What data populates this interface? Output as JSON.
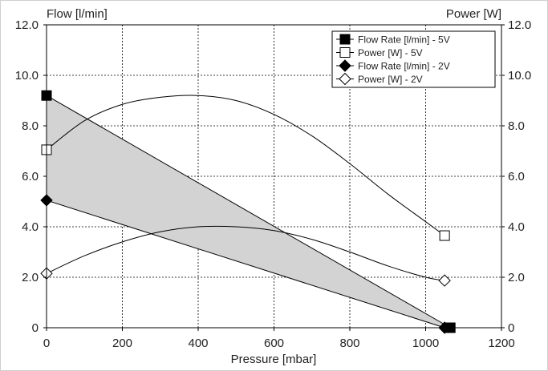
{
  "chart_data": {
    "type": "line",
    "y_axis_left_title": "Flow [l/min]",
    "y_axis_right_title": "Power [W]",
    "xlabel": "Pressure [mbar]",
    "xlim": [
      0,
      1200
    ],
    "ylim": [
      0,
      12
    ],
    "x_ticks": [
      0,
      200,
      400,
      600,
      800,
      1000,
      1200
    ],
    "x_tick_labels": [
      "0",
      "200",
      "400",
      "600",
      "800",
      "1000",
      "1200"
    ],
    "y_ticks": [
      0,
      2,
      4,
      6,
      8,
      10,
      12
    ],
    "y_tick_labels_left": [
      "0",
      "2.0",
      "4.0",
      "6.0",
      "8.0",
      "10.0",
      "12.0"
    ],
    "y_tick_labels_right": [
      "0",
      "2.0",
      "4.0",
      "6.0",
      "8.0",
      "10.0",
      "12.0"
    ],
    "grid": true,
    "legend_position": "top-right",
    "shaded_region": {
      "between": [
        "Flow Rate [l/min] - 5V",
        "Flow Rate [l/min] - 2V"
      ],
      "color": "#d3d3d3"
    },
    "series": [
      {
        "name": "Flow Rate [l/min] - 5V",
        "axis": "left",
        "marker": "filled-square",
        "smooth": false,
        "x": [
          0,
          1065
        ],
        "y": [
          9.2,
          0
        ],
        "marker_x": [
          0,
          1065
        ],
        "marker_y": [
          9.2,
          0
        ]
      },
      {
        "name": "Power [W] - 5V",
        "axis": "right",
        "marker": "open-square",
        "smooth": true,
        "x": [
          0,
          100,
          200,
          300,
          400,
          500,
          600,
          700,
          800,
          900,
          1000,
          1050
        ],
        "y": [
          7.05,
          8.2,
          8.85,
          9.13,
          9.2,
          9.0,
          8.45,
          7.6,
          6.5,
          5.3,
          4.2,
          3.65
        ],
        "marker_x": [
          0,
          1050
        ],
        "marker_y": [
          7.05,
          3.65
        ]
      },
      {
        "name": "Flow Rate [l/min] - 2V",
        "axis": "left",
        "marker": "filled-diamond",
        "smooth": false,
        "x": [
          0,
          1050
        ],
        "y": [
          5.05,
          0
        ],
        "marker_x": [
          0,
          1050
        ],
        "marker_y": [
          5.05,
          0
        ]
      },
      {
        "name": "Power [W] - 2V",
        "axis": "right",
        "marker": "open-diamond",
        "smooth": true,
        "x": [
          0,
          100,
          200,
          300,
          400,
          500,
          600,
          700,
          800,
          900,
          1000,
          1050
        ],
        "y": [
          2.15,
          2.85,
          3.4,
          3.8,
          4.0,
          4.0,
          3.85,
          3.5,
          3.0,
          2.45,
          2.0,
          1.87
        ],
        "marker_x": [
          0,
          1050
        ],
        "marker_y": [
          2.15,
          1.87
        ]
      }
    ]
  }
}
